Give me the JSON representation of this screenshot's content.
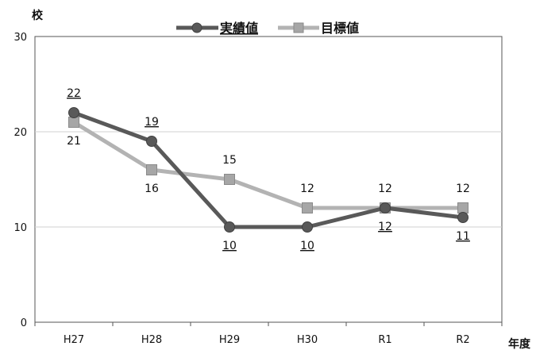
{
  "chart_data": {
    "type": "line",
    "y_unit_label": "校",
    "x_unit_label": "年度",
    "categories": [
      "H27",
      "H28",
      "H29",
      "H30",
      "R1",
      "R2"
    ],
    "ylim": [
      0,
      30
    ],
    "yticks": [
      0,
      10,
      20,
      30
    ],
    "grid": true,
    "legend_position": "top",
    "series": [
      {
        "name": "実績値",
        "values": [
          22,
          19,
          10,
          10,
          12,
          11
        ],
        "color": "#595959",
        "marker": "circle",
        "labels": [
          "22",
          "19",
          "10",
          "10",
          "12",
          "11"
        ],
        "label_position": [
          "above",
          "above",
          "below",
          "below",
          "below",
          "below"
        ],
        "label_underlined": true
      },
      {
        "name": "目標値",
        "values": [
          21,
          16,
          15,
          12,
          12,
          12
        ],
        "color": "#b3b3b3",
        "marker": "square",
        "labels": [
          "21",
          "16",
          "15",
          "12",
          "12",
          "12"
        ],
        "label_position": [
          "below",
          "below",
          "above",
          "above",
          "above",
          "above"
        ],
        "label_underlined": false
      }
    ]
  }
}
